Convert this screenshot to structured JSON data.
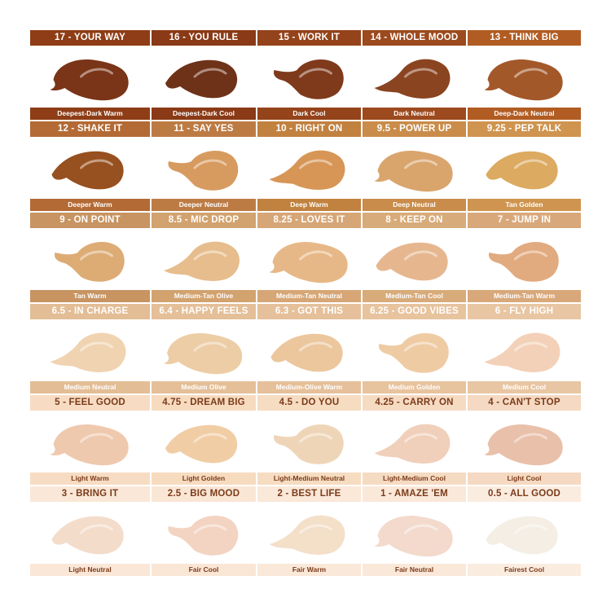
{
  "shades": [
    {
      "name": "17 - YOUR WAY",
      "undertone": "Deepest-Dark Warm",
      "color": "#7a3417",
      "header": "#8e3d16"
    },
    {
      "name": "16 - YOU RULE",
      "undertone": "Deepest-Dark Cool",
      "color": "#6e3219",
      "header": "#8a3a16"
    },
    {
      "name": "15 - WORK IT",
      "undertone": "Dark Cool",
      "color": "#7f3a1c",
      "header": "#94431a"
    },
    {
      "name": "14 - WHOLE MOOD",
      "undertone": "Dark Neutral",
      "color": "#8a4420",
      "header": "#9c4a1e"
    },
    {
      "name": "13 - THINK BIG",
      "undertone": "Deep-Dark Neutral",
      "color": "#a3582a",
      "header": "#b15c22"
    },
    {
      "name": "12 - SHAKE IT",
      "undertone": "Deeper Warm",
      "color": "#97501f",
      "header": "#b36a34"
    },
    {
      "name": "11 - SAY YES",
      "undertone": "Deeper Neutral",
      "color": "#d79a5f",
      "header": "#bd7b44"
    },
    {
      "name": "10 - RIGHT ON",
      "undertone": "Deep Warm",
      "color": "#d79656",
      "header": "#c1813f"
    },
    {
      "name": "9.5 - POWER UP",
      "undertone": "Deep Neutral",
      "color": "#d9a56d",
      "header": "#c98c4a"
    },
    {
      "name": "9.25 - PEP TALK",
      "undertone": "Tan Golden",
      "color": "#dcaa60",
      "header": "#cf944f"
    },
    {
      "name": "9 - ON POINT",
      "undertone": "Tan Warm",
      "color": "#ddac75",
      "header": "#c79462"
    },
    {
      "name": "8.5 - MIC DROP",
      "undertone": "Medium-Tan Olive",
      "color": "#e7bd8d",
      "header": "#d2a26f"
    },
    {
      "name": "8.25 - LOVES IT",
      "undertone": "Medium-Tan Neutral",
      "color": "#e7b887",
      "header": "#d6a676"
    },
    {
      "name": "8 - KEEP ON",
      "undertone": "Medium-Tan Cool",
      "color": "#e6b78f",
      "header": "#d8ab7a"
    },
    {
      "name": "7 - JUMP IN",
      "undertone": "Medium-Tan Warm",
      "color": "#e2aa7f",
      "header": "#d9a87a"
    },
    {
      "name": "6.5 - IN CHARGE",
      "undertone": "Medium Neutral",
      "color": "#f0d3b0",
      "header": "#e3bd95"
    },
    {
      "name": "6.4 - HAPPY FEELS",
      "undertone": "Medium Olive",
      "color": "#edcda5",
      "header": "#e4bf98"
    },
    {
      "name": "6.3 - GOT THIS",
      "undertone": "Medium-Olive Warm",
      "color": "#ecc79d",
      "header": "#e5c09a"
    },
    {
      "name": "6.25 - GOOD VIBES",
      "undertone": "Medium Golden",
      "color": "#efcba4",
      "header": "#e7c39e"
    },
    {
      "name": "6 - FLY HIGH",
      "undertone": "Medium Cool",
      "color": "#f3d1b8",
      "header": "#e8c6a3"
    },
    {
      "name": "5 - FEEL GOOD",
      "undertone": "Light Warm",
      "color": "#efc9ae",
      "header": "#f7dcc3"
    },
    {
      "name": "4.75 - DREAM BIG",
      "undertone": "Light Golden",
      "color": "#f1cda5",
      "header": "#f7dbbf"
    },
    {
      "name": "4.5 - DO YOU",
      "undertone": "Light-Medium Neutral",
      "color": "#efd5b8",
      "header": "#f6dcc1"
    },
    {
      "name": "4.25 - CARRY ON",
      "undertone": "Light-Medium Cool",
      "color": "#f0cfbb",
      "header": "#f6dbc3"
    },
    {
      "name": "4 - CAN'T STOP",
      "undertone": "Light Cool",
      "color": "#e9c0aa",
      "header": "#f5d9c2"
    },
    {
      "name": "3 - BRING IT",
      "undertone": "Light Neutral",
      "color": "#f4dccb",
      "header": "#fae7d7"
    },
    {
      "name": "2.5 - BIG MOOD",
      "undertone": "Fair Cool",
      "color": "#f3d3c2",
      "header": "#fae6d5"
    },
    {
      "name": "2 - BEST LIFE",
      "undertone": "Fair Warm",
      "color": "#f4dfc9",
      "header": "#fae8d8"
    },
    {
      "name": "1 - AMAZE 'EM",
      "undertone": "Fair Neutral",
      "color": "#f3dacd",
      "header": "#fae8d9"
    },
    {
      "name": "0.5 - ALL GOOD",
      "undertone": "Fairest Cool",
      "color": "#f4eee4",
      "header": "#fbece0"
    }
  ]
}
